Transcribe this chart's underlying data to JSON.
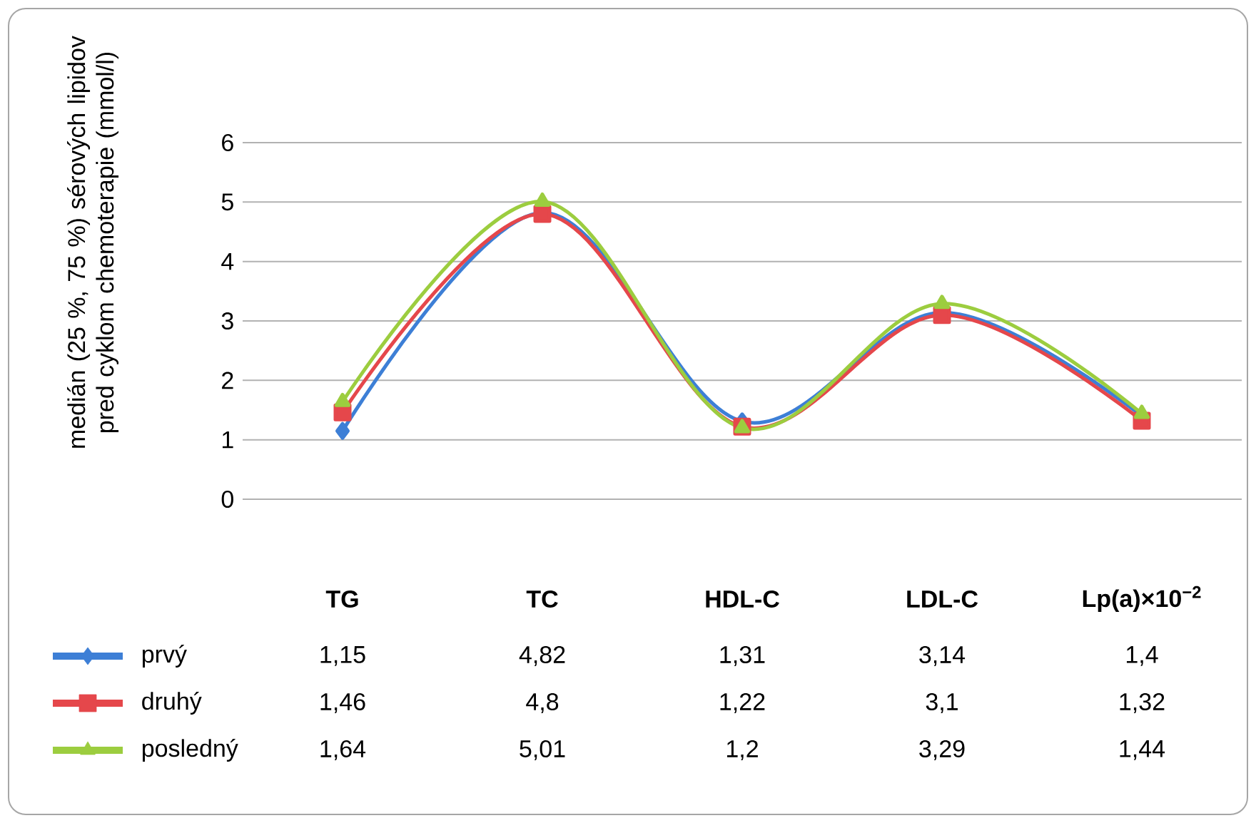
{
  "chart_data": {
    "type": "line",
    "ylabel": "medián (25 %, 75 %) sérových lipidov pred cyklom chemoterapie (mmol/l)",
    "categories": [
      "TG",
      "TC",
      "HDL-C",
      "LDL-C",
      "Lp(a)×10$^{−2}$"
    ],
    "series": [
      {
        "name": "prvý",
        "color": "#3d7fd6",
        "marker": "diamond",
        "values": [
          1.15,
          4.82,
          1.31,
          3.14,
          1.4
        ],
        "value_labels": [
          "1,15",
          "4,82",
          "1,31",
          "3,14",
          "1,4"
        ]
      },
      {
        "name": "druhý",
        "color": "#e5474b",
        "marker": "square",
        "values": [
          1.46,
          4.8,
          1.22,
          3.1,
          1.32
        ],
        "value_labels": [
          "1,46",
          "4,8",
          "1,22",
          "3,1",
          "1,32"
        ]
      },
      {
        "name": "posledný",
        "color": "#9ccd3f",
        "marker": "triangle",
        "values": [
          1.64,
          5.01,
          1.2,
          3.29,
          1.44
        ],
        "value_labels": [
          "1,64",
          "5,01",
          "1,2",
          "3,29",
          "1,44"
        ]
      }
    ],
    "ylim": [
      0,
      6
    ],
    "yticks": [
      0,
      1,
      2,
      3,
      4,
      5,
      6
    ],
    "grid": "y",
    "legend": "bottom left"
  }
}
